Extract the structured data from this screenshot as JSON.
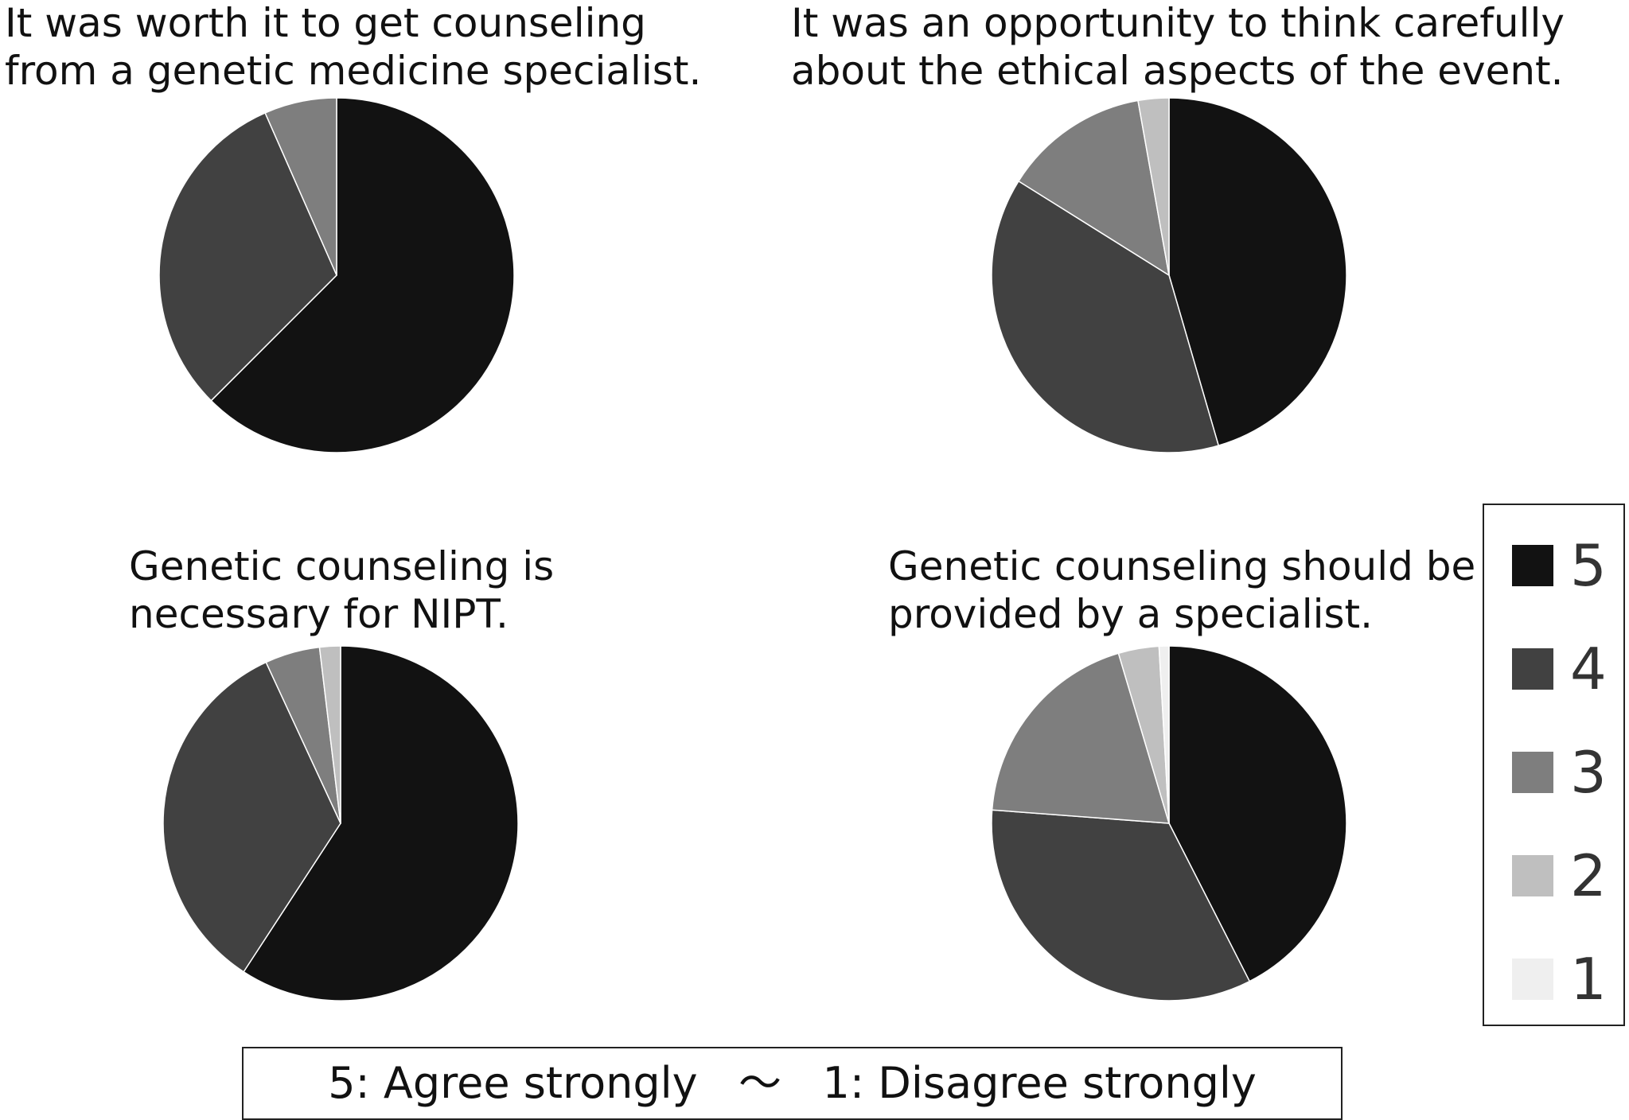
{
  "colors": {
    "5": "#121212",
    "4": "#414141",
    "3": "#7e7e7e",
    "2": "#bfbfbf",
    "1": "#efefef"
  },
  "chart_data": [
    {
      "type": "pie",
      "title_lines": [
        "It was worth it to get counseling",
        "from a genetic medicine specialist."
      ],
      "categories": [
        "5",
        "4",
        "3",
        "2",
        "1"
      ],
      "values": [
        62.5,
        30.9,
        6.6,
        0,
        0
      ]
    },
    {
      "type": "pie",
      "title_lines": [
        "It was an opportunity to think carefully",
        "about the ethical aspects of the event."
      ],
      "categories": [
        "5",
        "4",
        "3",
        "2",
        "1"
      ],
      "values": [
        45.5,
        38.4,
        13.3,
        2.8,
        0
      ]
    },
    {
      "type": "pie",
      "title_lines": [
        "Genetic counseling is",
        "necessary for NIPT."
      ],
      "categories": [
        "5",
        "4",
        "3",
        "2",
        "1"
      ],
      "values": [
        59.2,
        33.9,
        5.0,
        1.9,
        0
      ]
    },
    {
      "type": "pie",
      "title_lines": [
        "Genetic counseling should be",
        "provided by a specialist."
      ],
      "categories": [
        "5",
        "4",
        "3",
        "2",
        "1"
      ],
      "values": [
        42.5,
        33.7,
        19.2,
        3.7,
        0.9
      ]
    }
  ],
  "legend": {
    "entries": [
      "5",
      "4",
      "3",
      "2",
      "1"
    ]
  },
  "scale_note": "5: Agree strongly   ～   1: Disagree strongly"
}
